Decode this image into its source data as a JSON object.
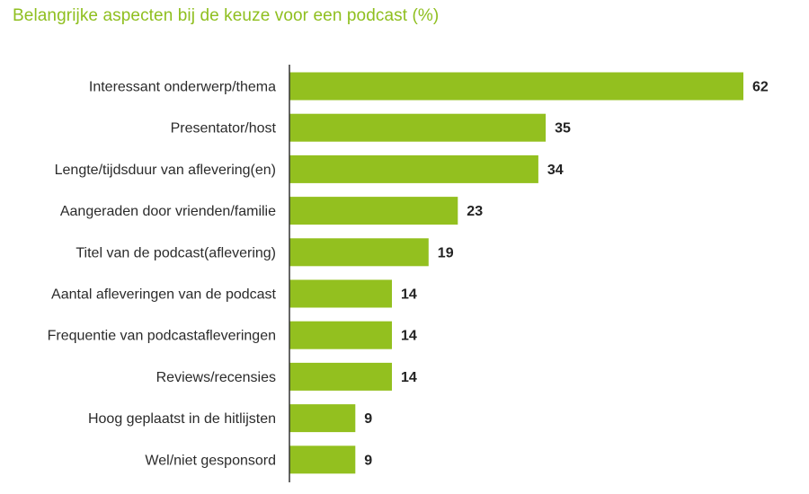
{
  "chart_data": {
    "type": "bar",
    "orientation": "horizontal",
    "title": "Belangrijke aspecten bij de keuze voor een podcast (%)",
    "categories": [
      "Interessant onderwerp/thema",
      "Presentator/host",
      "Lengte/tijdsduur van aflevering(en)",
      "Aangeraden door vrienden/familie",
      "Titel van de podcast(aflevering)",
      "Aantal afleveringen van de podcast",
      "Frequentie van podcastafleveringen",
      "Reviews/recensies",
      "Hoog geplaatst in de hitlijsten",
      "Wel/niet gesponsord"
    ],
    "values": [
      62,
      35,
      34,
      23,
      19,
      14,
      14,
      14,
      9,
      9
    ],
    "xlim": [
      0,
      62
    ],
    "data_labels": true,
    "grid": false,
    "colors": {
      "bar": "#93c01f",
      "title": "#8fbf1f",
      "axis": "#333333",
      "label": "#2b2b2b",
      "value": "#222222"
    }
  }
}
